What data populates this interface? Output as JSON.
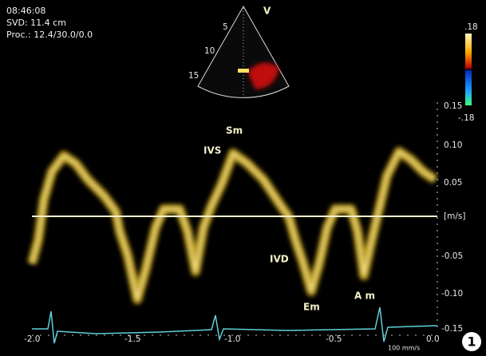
{
  "header": {
    "time": "08:46:08",
    "svd": "SVD: 11.4 cm",
    "proc": "Proc.: 12.4/30.0/0.0"
  },
  "sector": {
    "mode": "V",
    "depths": [
      "5",
      "10",
      "15"
    ]
  },
  "color_scale": {
    "top": ".18",
    "bottom": "-.18"
  },
  "velocity_axis": {
    "ticks": [
      "0.15",
      "0.10",
      "0.05",
      "[m/s]",
      "-0.05",
      "-0.10",
      "-0.15"
    ]
  },
  "time_axis": {
    "ticks": [
      "-2.0",
      "-1.5",
      "-1.0",
      "-0.5",
      "0.0"
    ],
    "sweep": "100 mm/s"
  },
  "annotations": {
    "sm": "Sm",
    "ivs": "IVS",
    "ivd": "IVD",
    "em": "Em",
    "am": "A m"
  },
  "panel_number": "1"
}
